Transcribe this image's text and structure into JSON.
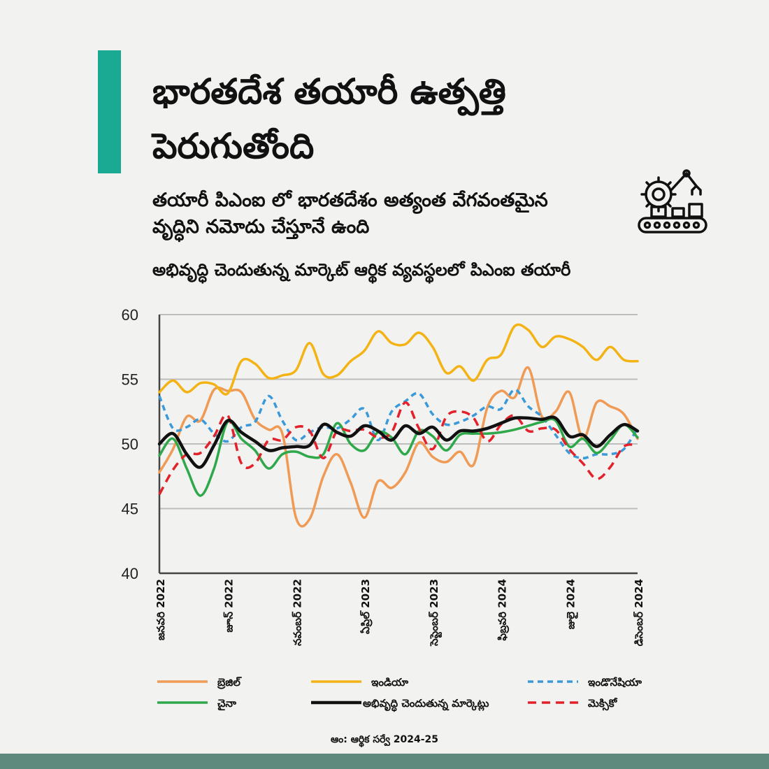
{
  "header": {
    "title_line1": "భారతదేశ తయారీ ఉత్పత్తి",
    "title_line2": "పెరుగుతోంది",
    "subtitle_line1": "తయారీ పిఎంఐ లో భారతదేశం అత్యంత వేగవంతమైన",
    "subtitle_line2": "వృద్ధిని నమోదు చేస్తూనే ఉంది",
    "chart_title": "అభివృద్ధి చెందుతున్న మార్కెట్ ఆర్థిక వ్యవస్థలలో పిఎంఐ తయారీ"
  },
  "icons": {
    "header_icon": "factory-robot-arm-conveyor-icon"
  },
  "source": "ఆం: ఆర్థిక సర్వే 2024-25",
  "colors": {
    "accent": "#1aa993",
    "bottom_bar": "#5e8a7d",
    "brazil": "#ef9a55",
    "india": "#f4b315",
    "indonesia": "#3a9ad9",
    "china": "#2ea84a",
    "emerging": "#111111",
    "mexico": "#e3212b"
  },
  "chart_data": {
    "type": "line",
    "title": "అభివృద్ధి చెందుతున్న మార్కెట్ ఆర్థిక వ్యవస్థలలో పిఎంఐ తయారీ",
    "xlabel": "",
    "ylabel": "",
    "ylim": [
      40,
      60
    ],
    "yticks": [
      40,
      45,
      50,
      55,
      60
    ],
    "grid": "horizontal",
    "legend_position": "bottom",
    "x": [
      "2022-01",
      "2022-02",
      "2022-03",
      "2022-04",
      "2022-05",
      "2022-06",
      "2022-07",
      "2022-08",
      "2022-09",
      "2022-10",
      "2022-11",
      "2022-12",
      "2023-01",
      "2023-02",
      "2023-03",
      "2023-04",
      "2023-05",
      "2023-06",
      "2023-07",
      "2023-08",
      "2023-09",
      "2023-10",
      "2023-11",
      "2023-12",
      "2024-01",
      "2024-02",
      "2024-03",
      "2024-04",
      "2024-05",
      "2024-06",
      "2024-07",
      "2024-08",
      "2024-09",
      "2024-10",
      "2024-11",
      "2024-12"
    ],
    "x_tick_labels": [
      {
        "index": 0,
        "label": "జనవరి 2022"
      },
      {
        "index": 5,
        "label": "జూన్ 2022"
      },
      {
        "index": 10,
        "label": "నవంబర్ 2022"
      },
      {
        "index": 15,
        "label": "ఏప్రిల్ 2023"
      },
      {
        "index": 20,
        "label": "సెప్టెంబర్ 2023"
      },
      {
        "index": 25,
        "label": "ఫిబ్రవరి 2024"
      },
      {
        "index": 30,
        "label": "జులై 2024"
      },
      {
        "index": 35,
        "label": "డిసెంబర్ 2024"
      }
    ],
    "series": [
      {
        "name": "బ్రెజిల్",
        "color": "#ef9a55",
        "dash": "solid",
        "values": [
          47.8,
          49.6,
          52.1,
          51.8,
          54.2,
          54.1,
          54.0,
          51.9,
          51.1,
          50.8,
          44.3,
          44.2,
          47.5,
          49.2,
          47.0,
          44.3,
          47.1,
          46.6,
          47.8,
          50.1,
          49.0,
          48.6,
          49.4,
          48.4,
          52.8,
          54.1,
          53.6,
          55.9,
          52.1,
          52.5,
          54.0,
          50.4,
          53.2,
          52.9,
          52.3,
          50.4
        ]
      },
      {
        "name": "ఇండియా",
        "color": "#f4b315",
        "dash": "solid",
        "values": [
          54.0,
          54.9,
          54.0,
          54.7,
          54.6,
          53.9,
          56.4,
          56.2,
          55.1,
          55.3,
          55.7,
          57.8,
          55.4,
          55.3,
          56.4,
          57.2,
          58.7,
          57.8,
          57.7,
          58.6,
          57.5,
          55.5,
          56.0,
          54.9,
          56.5,
          56.9,
          59.1,
          58.8,
          57.5,
          58.3,
          58.1,
          57.5,
          56.5,
          57.5,
          56.5,
          56.4
        ]
      },
      {
        "name": "ఇండొనేషియా",
        "color": "#3a9ad9",
        "dash": "dashed",
        "values": [
          53.7,
          51.2,
          51.3,
          51.9,
          50.8,
          50.2,
          51.3,
          51.7,
          53.7,
          51.8,
          50.3,
          50.9,
          51.3,
          51.2,
          51.9,
          52.7,
          50.3,
          52.5,
          53.3,
          53.9,
          52.3,
          51.5,
          51.7,
          52.2,
          52.9,
          52.7,
          54.2,
          52.9,
          52.1,
          50.7,
          49.3,
          48.9,
          49.2,
          49.2,
          49.6,
          51.2
        ]
      },
      {
        "name": "చైనా",
        "color": "#2ea84a",
        "dash": "solid",
        "values": [
          49.1,
          50.4,
          48.1,
          46.0,
          48.1,
          51.7,
          50.4,
          49.5,
          48.1,
          49.2,
          49.4,
          49.0,
          49.2,
          51.6,
          50.0,
          49.5,
          50.9,
          50.5,
          49.2,
          51.0,
          50.6,
          49.5,
          50.7,
          50.8,
          50.8,
          50.9,
          51.1,
          51.4,
          51.7,
          51.8,
          49.8,
          50.4,
          49.3,
          50.3,
          51.5,
          50.5
        ]
      },
      {
        "name": "అభివృద్ధి చెందుతున్న మార్కెట్లు",
        "color": "#111111",
        "dash": "solid",
        "values": [
          50.0,
          50.8,
          49.2,
          48.2,
          49.9,
          51.8,
          50.9,
          50.2,
          49.5,
          49.7,
          49.8,
          49.9,
          51.5,
          50.9,
          50.6,
          51.4,
          51.0,
          50.3,
          51.4,
          50.8,
          51.3,
          50.3,
          51.0,
          51.0,
          51.2,
          51.6,
          52.0,
          52.0,
          51.9,
          52.0,
          50.6,
          50.7,
          49.8,
          50.7,
          51.5,
          51.0
        ]
      },
      {
        "name": "మెక్సికో",
        "color": "#e3212b",
        "dash": "dashed",
        "values": [
          46.1,
          48.0,
          49.2,
          49.3,
          50.6,
          52.2,
          48.5,
          48.5,
          50.3,
          50.3,
          51.3,
          51.0,
          48.9,
          51.0,
          51.0,
          51.1,
          50.5,
          50.9,
          53.2,
          51.2,
          49.6,
          52.1,
          52.5,
          52.0,
          50.2,
          51.5,
          52.2,
          51.0,
          51.2,
          51.1,
          49.6,
          48.5,
          47.3,
          48.2,
          49.8,
          49.9
        ]
      }
    ]
  }
}
